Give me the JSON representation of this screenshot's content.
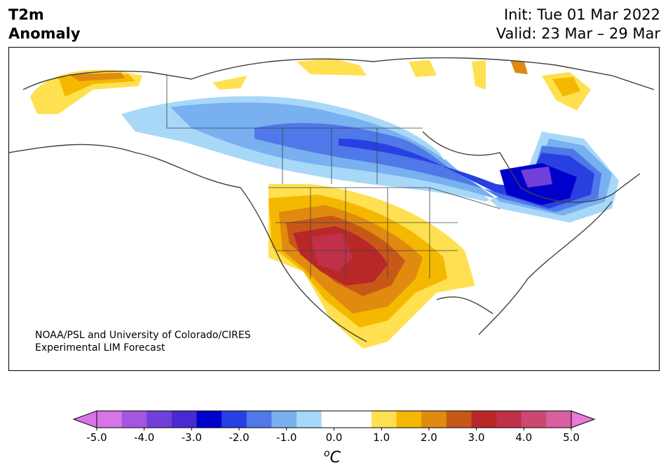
{
  "title": {
    "line1": "T2m",
    "line2": "Anomaly"
  },
  "dates": {
    "init": "Init: Tue 01 Mar 2022",
    "valid": "Valid: 23 Mar – 29 Mar"
  },
  "credit": {
    "line1": "NOAA/PSL and University of Colorado/CIRES",
    "line2": "Experimental LIM Forecast"
  },
  "colorbar": {
    "ticks": [
      "-5.0",
      "-4.0",
      "-3.0",
      "-2.0",
      "-1.0",
      "0.0",
      "1.0",
      "2.0",
      "3.0",
      "4.0",
      "5.0"
    ],
    "colors": [
      "#d775e8",
      "#a655e0",
      "#7040d8",
      "#4a2ad0",
      "#0000cd",
      "#2840e0",
      "#4f78e8",
      "#78b0f0",
      "#a8d8f8",
      "#ffffff",
      "#ffffff",
      "#ffe050",
      "#f5b800",
      "#e08a10",
      "#c85818",
      "#b82828",
      "#c03048",
      "#cc4870",
      "#d860a0"
    ],
    "under_color": "#d775e8",
    "over_color": "#e87ad8",
    "unit_base": "C",
    "unit_sup": "o"
  }
}
